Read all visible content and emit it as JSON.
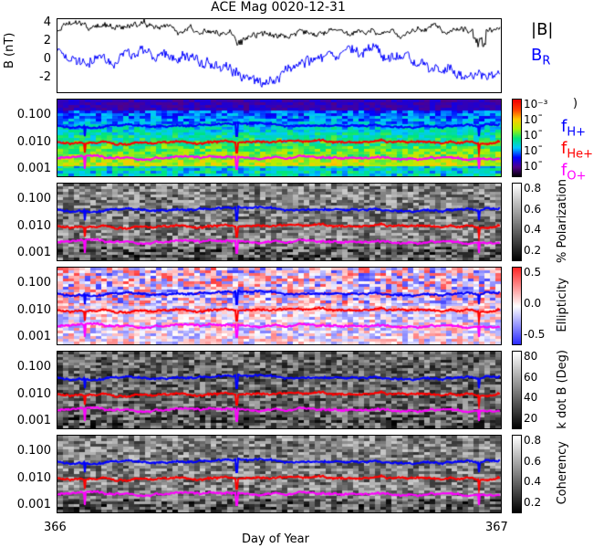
{
  "title": "ACE Mag 0020-12-31",
  "colors": {
    "B_total": "#000000",
    "B_R": "#0000ff",
    "f_H": "#0000ff",
    "f_He": "#ff0000",
    "f_O": "#ff00ff"
  },
  "mag_panel": {
    "ylabel": "B (nT)",
    "yticks": [
      "4",
      "2",
      "0",
      "-2"
    ],
    "ylim": [
      -3.5,
      4.5
    ],
    "legend": [
      {
        "label": "|B|",
        "color": "#000000"
      },
      {
        "label": "B",
        "sub": "R",
        "color": "#0000ff"
      }
    ]
  },
  "freq_yticks": [
    "0.100",
    "0.010",
    "0.001"
  ],
  "spectro_panels": [
    {
      "name": "power",
      "colorbar_ticks": [
        "10⁻³",
        "10ˉ",
        "10ˉ",
        "10ˉ",
        "10ˉ"
      ],
      "colorbar_label": ")",
      "colormap": "rainbow",
      "legend": [
        {
          "label": "f",
          "sub": "H+",
          "color": "#0000ff"
        },
        {
          "label": "f",
          "sub": "He+",
          "color": "#ff0000"
        },
        {
          "label": "f",
          "sub": "O+",
          "color": "#ff00ff"
        }
      ]
    },
    {
      "name": "polarization",
      "colorbar_ticks": [
        "0.8",
        "0.6",
        "0.4",
        "0.2"
      ],
      "colorbar_label": "% Polarization",
      "colormap": "gray"
    },
    {
      "name": "ellipticity",
      "colorbar_ticks": [
        "0.5",
        "0.0",
        "-0.5"
      ],
      "colorbar_label": "Ellipticity",
      "colormap": "bwr"
    },
    {
      "name": "kdotb",
      "colorbar_ticks": [
        "80",
        "60",
        "40",
        "20"
      ],
      "colorbar_label": "k dot B (Deg)",
      "colormap": "gray"
    },
    {
      "name": "coherency",
      "colorbar_ticks": [
        "0.8",
        "0.6",
        "0.4",
        "0.2"
      ],
      "colorbar_label": "Coherency",
      "colormap": "gray"
    }
  ],
  "chart_data": {
    "type": "line",
    "title": "ACE Mag 0020-12-31",
    "xlabel": "Day of Year",
    "xticks": [
      "366",
      "367"
    ],
    "xlim": [
      366,
      367
    ],
    "series": [
      {
        "name": "|B|",
        "approx_range": [
          2,
          4
        ]
      },
      {
        "name": "B_R",
        "approx_range": [
          -3,
          3
        ]
      },
      {
        "name": "f_H+",
        "approx_value": 0.045
      },
      {
        "name": "f_He+",
        "approx_value": 0.011
      },
      {
        "name": "f_O+",
        "approx_value": 0.0028
      }
    ]
  }
}
